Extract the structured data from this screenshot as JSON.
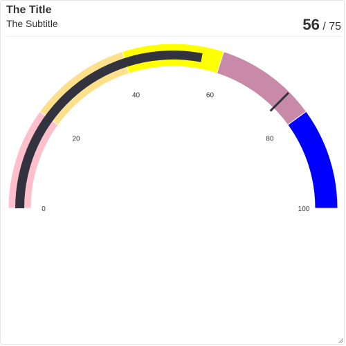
{
  "card": {
    "title": "The Title",
    "subtitle": "The Subtitle",
    "value": "56",
    "target_prefix": "/ ",
    "target": "75"
  },
  "chart_data": {
    "type": "gauge",
    "title": "The Title",
    "subtitle": "The Subtitle",
    "value": 56,
    "target": 75,
    "min": 0,
    "max": 100,
    "ticks": [
      0,
      20,
      40,
      60,
      80,
      100
    ],
    "bands": [
      {
        "from": 0,
        "to": 20,
        "color": "#ffc0cb"
      },
      {
        "from": 20,
        "to": 40,
        "color": "#fde08c"
      },
      {
        "from": 40,
        "to": 60,
        "color": "#ffff00"
      },
      {
        "from": 60,
        "to": 80,
        "color": "#c98aaa"
      },
      {
        "from": 80,
        "to": 100,
        "color": "#0000ff"
      }
    ],
    "value_color": "#33333f",
    "target_color": "#33333f"
  }
}
